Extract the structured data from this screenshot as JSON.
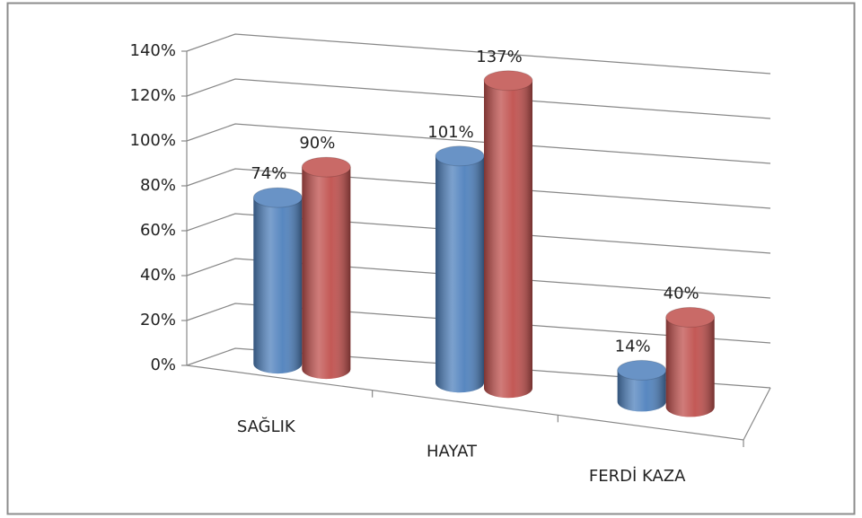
{
  "chart_data": {
    "type": "bar3d",
    "categories": [
      "SAĞLIK",
      "HAYAT",
      "FERDİ KAZA"
    ],
    "series": [
      {
        "color": "#4f81bd",
        "values": [
          74,
          101,
          14
        ],
        "value_labels": [
          "74%",
          "101%",
          "14%"
        ]
      },
      {
        "color": "#c0504d",
        "values": [
          90,
          137,
          40
        ],
        "value_labels": [
          "90%",
          "137%",
          "40%"
        ]
      }
    ],
    "ylim": [
      0,
      140
    ],
    "yticks": [
      {
        "value": 0,
        "label": "0%"
      },
      {
        "value": 20,
        "label": "20%"
      },
      {
        "value": 40,
        "label": "40%"
      },
      {
        "value": 60,
        "label": "60%"
      },
      {
        "value": 80,
        "label": "80%"
      },
      {
        "value": 100,
        "label": "100%"
      },
      {
        "value": 120,
        "label": "120%"
      },
      {
        "value": 140,
        "label": "140%"
      }
    ],
    "grid": true
  }
}
